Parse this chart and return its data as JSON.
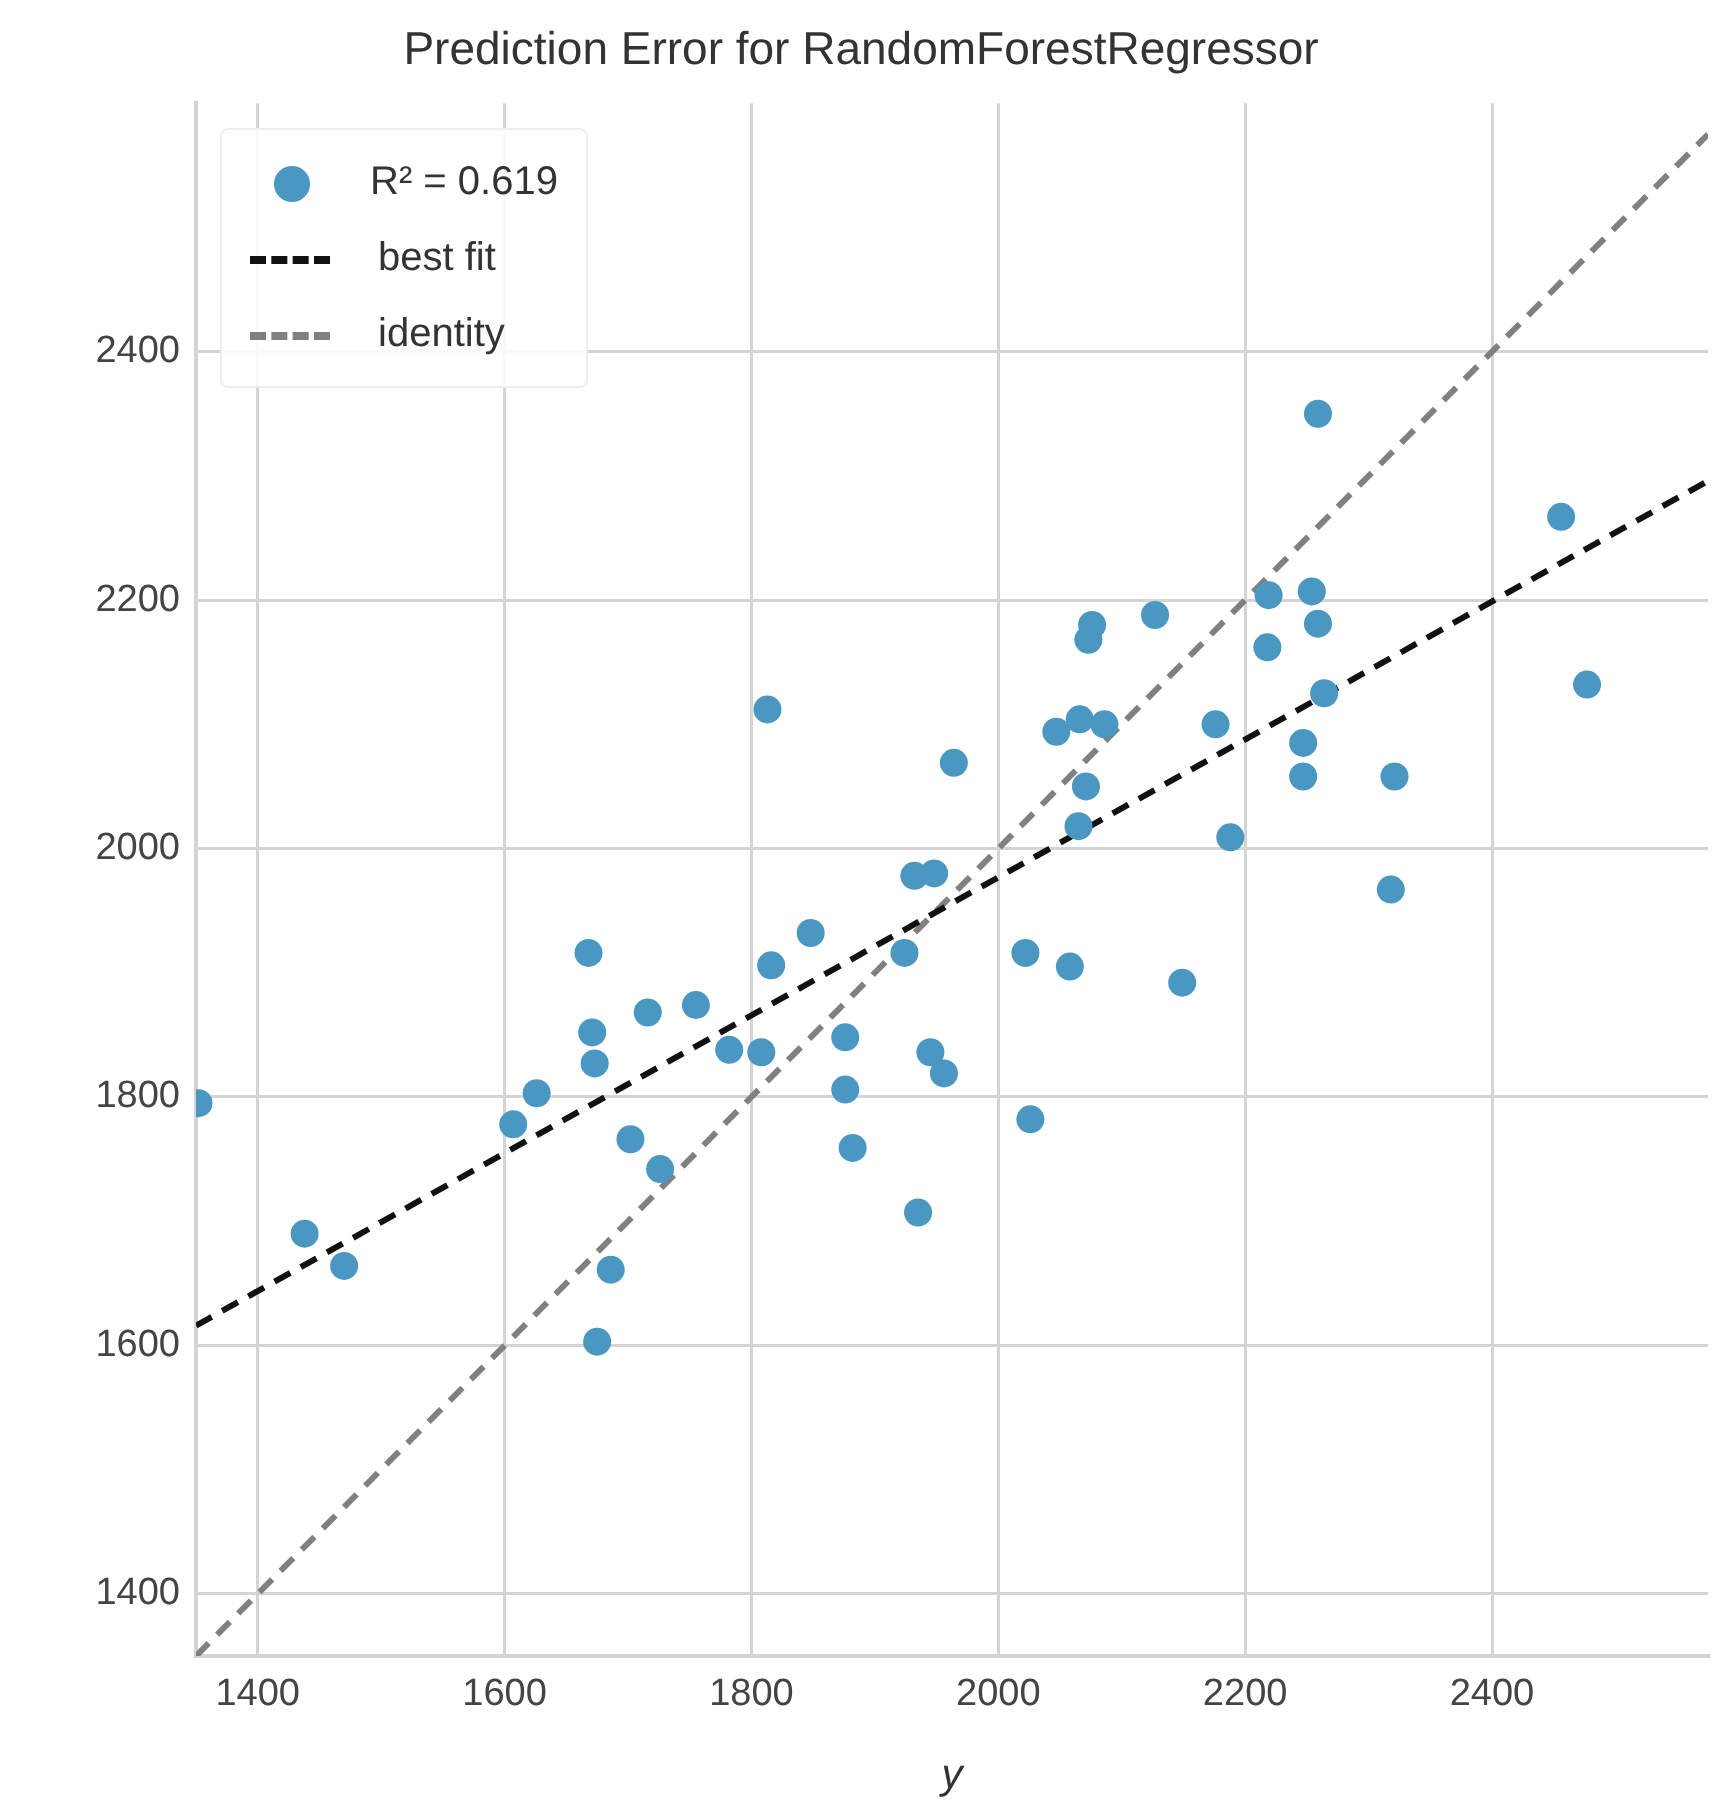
{
  "chart_data": {
    "type": "scatter",
    "title": "Prediction Error for RandomForestRegressor",
    "xlabel": "y",
    "xlim": [
      1350,
      2575
    ],
    "ylim": [
      1350,
      2600
    ],
    "xticks": [
      1400,
      1600,
      1800,
      2000,
      2200,
      2400
    ],
    "yticks": [
      1400,
      1600,
      1800,
      2000,
      2200,
      2400
    ],
    "grid": true,
    "legend": "top left",
    "series": [
      {
        "name": "R² = 0.619",
        "type": "scatter",
        "marker": "circle",
        "color": "#4a97c2",
        "x": [
          1470,
          1438,
          1686,
          1675,
          1352,
          1607,
          1626,
          1671,
          1673,
          1668,
          1702,
          1726,
          1716,
          1755,
          1782,
          1808,
          1813,
          1816,
          1848,
          1876,
          1876,
          1882,
          1935,
          1945,
          1956,
          1932,
          1948,
          1924,
          1964,
          2259,
          2456,
          2477,
          2219,
          2254,
          2259,
          2218,
          2127,
          2076,
          2073,
          2264,
          2176,
          2247,
          2247,
          2321,
          2318,
          2047,
          2066,
          2086,
          2071,
          2065,
          2188,
          2022,
          2058,
          2149,
          2026
        ],
        "values": [
          1664,
          1690,
          1661,
          1603,
          1795,
          1778,
          1803,
          1852,
          1827,
          1916,
          1766,
          1742,
          1868,
          1874,
          1838,
          1836,
          2112,
          1906,
          1932,
          1848,
          1806,
          1759,
          1707,
          1836,
          1819,
          1978,
          1980,
          1916,
          2069,
          2350,
          2267,
          2132,
          2204,
          2207,
          2181,
          2162,
          2188,
          2180,
          2168,
          2125,
          2100,
          2085,
          2058,
          2058,
          1967,
          2094,
          2104,
          2100,
          2050,
          2018,
          2009,
          1916,
          1905,
          1892,
          1782
        ]
      },
      {
        "name": "best fit",
        "type": "line",
        "line_style": "dashed",
        "color": "#111111",
        "x": [
          1350,
          2575
        ],
        "values": [
          1616,
          2296
        ]
      },
      {
        "name": "identity",
        "type": "line",
        "line_style": "dashed",
        "color": "#808080",
        "x": [
          1350,
          2575
        ],
        "values": [
          1350,
          2575
        ]
      }
    ]
  }
}
